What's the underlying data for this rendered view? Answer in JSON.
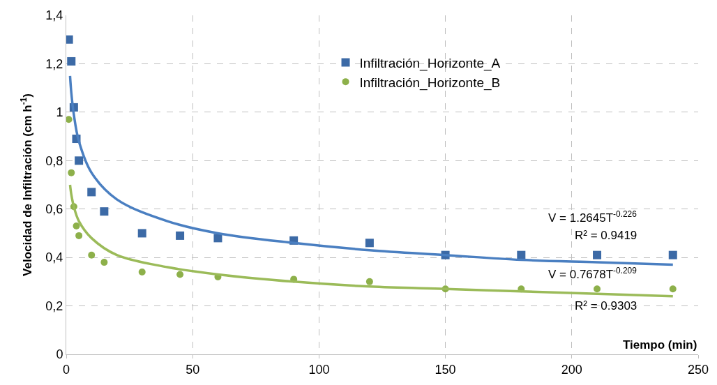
{
  "chart_data": {
    "type": "scatter",
    "xlabel": "Tiempo (min)",
    "ylabel": "Velocidad de Infiltración (cm h$^{-1}$)",
    "xlim": [
      0,
      250
    ],
    "xticks": [
      0,
      50,
      100,
      150,
      200,
      250
    ],
    "ylim": [
      0,
      1.4
    ],
    "yticks": [
      0,
      {
        "value": 0.2,
        "label": "0,2"
      },
      {
        "value": 0.4,
        "label": "0,4"
      },
      {
        "value": 0.6,
        "label": "0,6"
      },
      {
        "value": 0.8,
        "label": "0,8"
      },
      1,
      {
        "value": 1.2,
        "label": "1,2"
      },
      {
        "value": 1.4,
        "label": "1,4"
      }
    ],
    "grid": true,
    "legend": "top",
    "series": [
      {
        "name": "Infiltración_Horizonte_A",
        "marker": "square",
        "color": "#3c6aa6",
        "x": [
          1,
          2,
          3,
          4,
          5,
          10,
          15,
          30,
          45,
          60,
          90,
          120,
          150,
          180,
          210,
          240
        ],
        "values": [
          1.3,
          1.21,
          1.02,
          0.89,
          0.8,
          0.67,
          0.59,
          0.5,
          0.49,
          0.48,
          0.47,
          0.46,
          0.41,
          0.41,
          0.41,
          0.41
        ]
      },
      {
        "name": "Infiltración_Horizonte_B",
        "marker": "circle",
        "color": "#8db04a",
        "x": [
          1,
          2,
          3,
          4,
          5,
          10,
          15,
          30,
          45,
          60,
          90,
          120,
          150,
          180,
          210,
          240
        ],
        "values": [
          0.97,
          0.75,
          0.61,
          0.53,
          0.49,
          0.41,
          0.38,
          0.34,
          0.33,
          0.32,
          0.31,
          0.3,
          0.27,
          0.27,
          0.27,
          0.27
        ]
      },
      {
        "type": "line",
        "color": "#4a7fc1",
        "line_style": "solid",
        "x": [
          1.5,
          2,
          3,
          5,
          10,
          20,
          40,
          60,
          90,
          120,
          150,
          180,
          210,
          240
        ],
        "values": [
          1.15,
          1.08,
          0.99,
          0.88,
          0.75,
          0.64,
          0.55,
          0.5,
          0.46,
          0.43,
          0.41,
          0.39,
          0.38,
          0.37
        ]
      },
      {
        "type": "line",
        "color": "#9bbb59",
        "line_style": "solid",
        "x": [
          1.5,
          2,
          3,
          5,
          10,
          20,
          40,
          60,
          90,
          120,
          150,
          180,
          210,
          240
        ],
        "values": [
          0.7,
          0.66,
          0.61,
          0.55,
          0.48,
          0.41,
          0.36,
          0.33,
          0.3,
          0.28,
          0.27,
          0.26,
          0.25,
          0.24
        ]
      }
    ],
    "annotations": [
      "V = 1.2645T$^{-0.226}$",
      "R² = 0.9419",
      "V = 0.7678T$^{-0.209}$",
      "R² = 0.9303"
    ]
  }
}
